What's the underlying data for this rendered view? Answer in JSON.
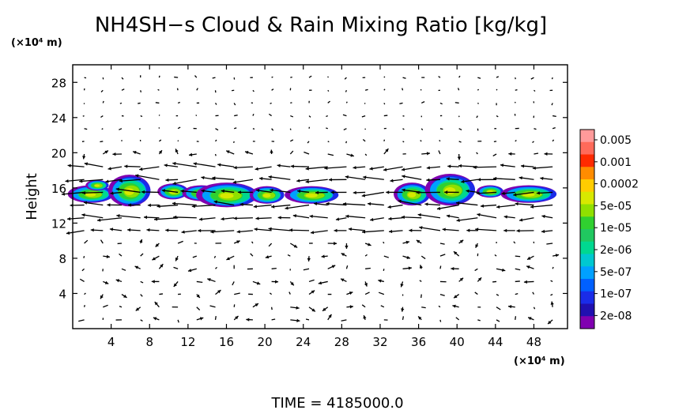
{
  "chart_data": {
    "type": "contour",
    "title": "NH4SH−s Cloud & Rain Mixing Ratio [kg/kg]",
    "ylabel": "Height",
    "y_unit_label": "(×10⁴ m)",
    "x_unit_label": "(×10⁴ m)",
    "xlim": [
      0,
      51.5
    ],
    "ylim": [
      0,
      30
    ],
    "x_ticks": [
      "4",
      "8",
      "12",
      "16",
      "20",
      "24",
      "28",
      "32",
      "36",
      "40",
      "44",
      "48"
    ],
    "y_ticks": [
      "4",
      "8",
      "12",
      "16",
      "20",
      "24",
      "28"
    ],
    "x_tick_values": [
      4,
      8,
      12,
      16,
      20,
      24,
      28,
      32,
      36,
      40,
      44,
      48
    ],
    "y_tick_values": [
      4,
      8,
      12,
      16,
      20,
      24,
      28
    ],
    "colorbar": {
      "labels": [
        "0.005",
        "0.001",
        "0.0002",
        "5e-05",
        "1e-05",
        "2e-06",
        "5e-07",
        "1e-07",
        "2e-08"
      ],
      "colors": [
        "#ff9a9a",
        "#ff6a5a",
        "#ff2a00",
        "#ff8c00",
        "#ffcc00",
        "#d8e800",
        "#90e000",
        "#30d030",
        "#20c860",
        "#00d890",
        "#00c8d0",
        "#00a0ff",
        "#0060ff",
        "#1a2ce8",
        "#2010b0",
        "#8000b0"
      ]
    },
    "cloud_patches": [
      {
        "x": 2.0,
        "y": 15.3,
        "rx": 2.4,
        "ry": 1.0
      },
      {
        "x": 2.6,
        "y": 16.3,
        "rx": 1.2,
        "ry": 0.6
      },
      {
        "x": 6.0,
        "y": 15.7,
        "rx": 2.2,
        "ry": 1.8
      },
      {
        "x": 10.5,
        "y": 15.6,
        "rx": 1.6,
        "ry": 0.9
      },
      {
        "x": 13.5,
        "y": 15.4,
        "rx": 2.0,
        "ry": 0.9
      },
      {
        "x": 16.2,
        "y": 15.2,
        "rx": 3.2,
        "ry": 1.4
      },
      {
        "x": 20.3,
        "y": 15.2,
        "rx": 1.8,
        "ry": 1.0
      },
      {
        "x": 25.0,
        "y": 15.2,
        "rx": 2.8,
        "ry": 1.0
      },
      {
        "x": 35.4,
        "y": 15.3,
        "rx": 1.9,
        "ry": 1.3
      },
      {
        "x": 39.4,
        "y": 15.8,
        "rx": 2.6,
        "ry": 1.8
      },
      {
        "x": 43.5,
        "y": 15.6,
        "rx": 1.4,
        "ry": 0.7
      },
      {
        "x": 47.6,
        "y": 15.3,
        "rx": 2.9,
        "ry": 1.0
      }
    ],
    "wind_arrows_description_free": true
  },
  "time_label": "TIME = 4185000.0",
  "colors": {
    "axis": "#000000",
    "background": "#ffffff"
  }
}
